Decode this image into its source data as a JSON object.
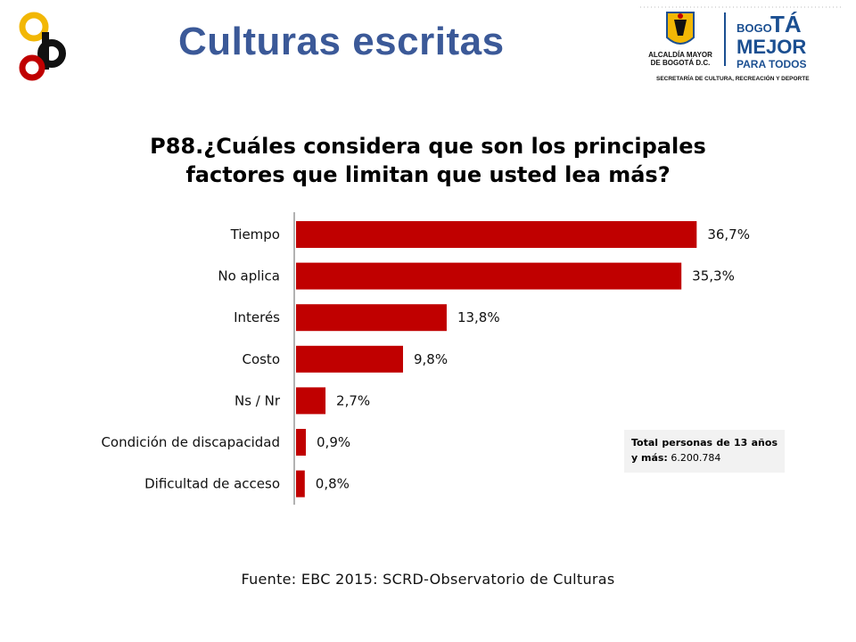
{
  "header": {
    "title": "Culturas escritas",
    "logo_left": {
      "icon": "ecb-logo-icon",
      "colors": [
        "#f2b705",
        "#111111",
        "#c00000"
      ]
    },
    "logo_right": {
      "line1": "ALCALDÍA MAYOR",
      "line2": "DE BOGOTÁ D.C.",
      "brand_bogo": "BOGO",
      "brand_ta": "TÁ",
      "brand_mejor": "MEJOR",
      "brand_para": "PARA TODOS",
      "subtitle": "SECRETARÍA DE CULTURA, RECREACIÓN Y DEPORTE",
      "brand_color": "#1b4f91"
    }
  },
  "chart_data": {
    "type": "bar",
    "orientation": "horizontal",
    "title_line1": "P88.¿Cuáles considera que son los principales",
    "title_line2": "factores que limitan que usted lea más?",
    "categories": [
      "Tiempo",
      "No aplica",
      "Interés",
      "Costo",
      "Ns / Nr",
      "Condición de discapacidad",
      "Dificultad de acceso"
    ],
    "values": [
      36.7,
      35.3,
      13.8,
      9.8,
      2.7,
      0.9,
      0.8
    ],
    "value_labels": [
      "36,7%",
      "35,3%",
      "13,8%",
      "9,8%",
      "2,7%",
      "0,9%",
      "0,8%"
    ],
    "bar_color": "#c00000",
    "xlim": [
      0,
      37
    ],
    "grid": false
  },
  "note": {
    "bold_text": "Total personas de 13 años y más:",
    "value": "6.200.784"
  },
  "source": "Fuente: EBC 2015: SCRD-Observatorio de Culturas"
}
